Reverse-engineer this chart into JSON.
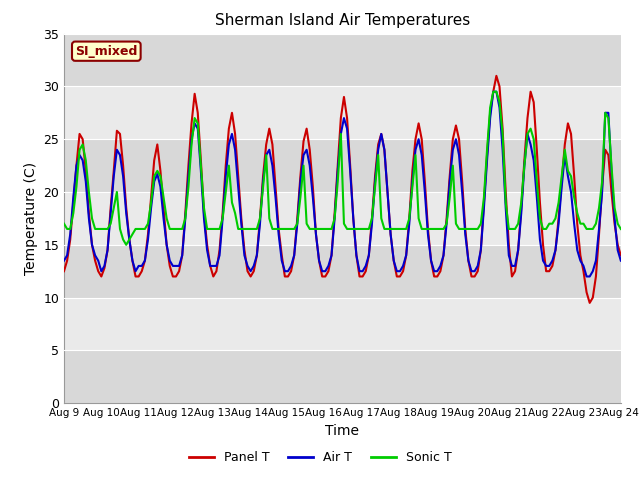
{
  "title": "Sherman Island Air Temperatures",
  "xlabel": "Time",
  "ylabel": "Temperature (C)",
  "ylim": [
    0,
    35
  ],
  "num_days": 15,
  "annotation_text": "SI_mixed",
  "annotation_color": "#8B0000",
  "annotation_bg": "#FFFFCC",
  "legend_entries": [
    "Panel T",
    "Air T",
    "Sonic T"
  ],
  "line_colors": [
    "#CC0000",
    "#0000CC",
    "#00CC00"
  ],
  "xtick_labels": [
    "Aug 9",
    "Aug 10",
    "Aug 11",
    "Aug 12",
    "Aug 13",
    "Aug 14",
    "Aug 15",
    "Aug 16",
    "Aug 17",
    "Aug 18",
    "Aug 19",
    "Aug 20",
    "Aug 21",
    "Aug 22",
    "Aug 23",
    "Aug 24"
  ],
  "bg_upper_color": "#E8E8E8",
  "bg_lower_color": "#D0D0D0",
  "panel_data": [
    12.5,
    13.5,
    15.5,
    19.0,
    22.5,
    25.5,
    25.0,
    22.0,
    18.0,
    15.0,
    13.5,
    12.5,
    12.0,
    12.8,
    14.5,
    18.5,
    22.0,
    25.8,
    25.5,
    22.5,
    18.5,
    15.5,
    13.5,
    12.0,
    12.0,
    12.5,
    13.5,
    16.0,
    19.5,
    23.0,
    24.5,
    22.0,
    18.5,
    15.0,
    13.0,
    12.0,
    12.0,
    12.5,
    14.0,
    18.0,
    22.5,
    26.5,
    29.3,
    27.5,
    23.0,
    18.0,
    15.0,
    13.0,
    12.0,
    12.5,
    14.5,
    18.0,
    22.5,
    26.0,
    27.5,
    25.5,
    21.5,
    17.5,
    14.5,
    12.5,
    12.0,
    12.5,
    14.0,
    17.5,
    21.5,
    24.5,
    26.0,
    24.5,
    20.5,
    16.5,
    14.0,
    12.0,
    12.0,
    12.5,
    14.0,
    17.5,
    21.5,
    24.8,
    26.0,
    24.0,
    20.5,
    16.0,
    13.5,
    12.0,
    12.0,
    12.5,
    14.0,
    18.0,
    22.5,
    27.0,
    29.0,
    27.0,
    22.5,
    17.5,
    14.0,
    12.0,
    12.0,
    12.5,
    14.0,
    17.5,
    21.5,
    24.5,
    25.5,
    24.0,
    20.0,
    16.0,
    13.5,
    12.0,
    12.0,
    12.5,
    14.0,
    17.5,
    22.0,
    25.0,
    26.5,
    25.0,
    21.0,
    16.5,
    13.5,
    12.0,
    12.0,
    12.5,
    14.0,
    17.5,
    21.5,
    25.0,
    26.3,
    25.0,
    21.0,
    16.5,
    13.5,
    12.0,
    12.0,
    12.5,
    14.5,
    19.0,
    23.5,
    27.5,
    29.5,
    31.0,
    30.0,
    26.0,
    20.0,
    15.0,
    12.0,
    12.5,
    14.5,
    18.5,
    23.0,
    27.0,
    29.5,
    28.5,
    24.0,
    19.0,
    15.0,
    12.5,
    12.5,
    13.0,
    14.5,
    17.5,
    21.0,
    24.5,
    26.5,
    25.5,
    21.5,
    17.0,
    14.0,
    12.5,
    10.5,
    9.5,
    10.0,
    12.0,
    16.0,
    20.5,
    24.0,
    23.5,
    20.0,
    17.0,
    15.0,
    14.0
  ],
  "air_data": [
    13.5,
    14.0,
    16.0,
    19.5,
    22.5,
    23.5,
    23.0,
    21.0,
    17.5,
    15.0,
    14.0,
    13.5,
    12.5,
    13.0,
    14.5,
    18.0,
    21.5,
    24.0,
    23.5,
    21.5,
    18.0,
    15.5,
    13.5,
    12.5,
    13.0,
    13.0,
    13.5,
    15.5,
    18.5,
    21.0,
    21.7,
    20.5,
    17.5,
    15.0,
    13.5,
    13.0,
    13.0,
    13.0,
    14.0,
    17.5,
    21.5,
    25.0,
    26.5,
    26.0,
    22.0,
    17.5,
    14.5,
    13.0,
    13.0,
    13.0,
    14.0,
    17.5,
    21.5,
    24.5,
    25.5,
    24.0,
    20.5,
    17.0,
    14.0,
    13.0,
    12.5,
    13.0,
    14.0,
    17.0,
    21.0,
    23.5,
    24.0,
    22.5,
    19.5,
    16.0,
    13.5,
    12.5,
    12.5,
    13.0,
    14.0,
    17.0,
    21.0,
    23.5,
    24.0,
    22.5,
    19.5,
    16.0,
    13.5,
    12.5,
    12.5,
    13.0,
    14.0,
    17.5,
    22.0,
    25.5,
    27.0,
    26.0,
    22.0,
    17.5,
    14.0,
    12.5,
    12.5,
    13.0,
    14.0,
    17.0,
    21.0,
    24.0,
    25.5,
    24.0,
    20.0,
    16.0,
    13.5,
    12.5,
    12.5,
    13.0,
    14.0,
    17.0,
    21.0,
    24.0,
    25.0,
    23.5,
    20.0,
    16.0,
    13.5,
    12.5,
    12.5,
    13.0,
    14.0,
    17.0,
    21.0,
    24.0,
    25.0,
    23.5,
    20.0,
    16.0,
    13.5,
    12.5,
    12.5,
    13.0,
    14.5,
    18.5,
    23.0,
    27.0,
    29.5,
    29.5,
    28.0,
    24.0,
    18.5,
    14.0,
    13.0,
    13.0,
    14.5,
    18.0,
    22.5,
    25.5,
    24.5,
    23.0,
    19.5,
    15.5,
    13.5,
    13.0,
    13.0,
    13.5,
    14.5,
    17.0,
    20.5,
    23.5,
    21.5,
    20.0,
    17.0,
    14.5,
    13.5,
    13.0,
    12.0,
    12.0,
    12.5,
    13.5,
    16.5,
    20.0,
    27.5,
    27.5,
    22.0,
    17.5,
    14.5,
    13.5
  ],
  "sonic_data": [
    17.0,
    16.5,
    16.5,
    18.0,
    20.5,
    24.0,
    24.5,
    23.0,
    20.0,
    17.5,
    16.5,
    16.5,
    16.5,
    16.5,
    16.5,
    17.0,
    18.5,
    20.0,
    16.5,
    15.5,
    15.0,
    15.5,
    16.0,
    16.5,
    16.5,
    16.5,
    16.5,
    17.0,
    19.0,
    21.5,
    22.0,
    21.5,
    19.5,
    17.5,
    16.5,
    16.5,
    16.5,
    16.5,
    16.5,
    17.5,
    20.5,
    24.5,
    27.0,
    26.5,
    22.5,
    18.5,
    16.5,
    16.5,
    16.5,
    16.5,
    16.5,
    17.5,
    20.0,
    22.5,
    19.0,
    18.0,
    16.5,
    16.5,
    16.5,
    16.5,
    16.5,
    16.5,
    16.5,
    17.5,
    20.5,
    23.5,
    17.5,
    16.5,
    16.5,
    16.5,
    16.5,
    16.5,
    16.5,
    16.5,
    16.5,
    17.0,
    19.5,
    22.5,
    17.0,
    16.5,
    16.5,
    16.5,
    16.5,
    16.5,
    16.5,
    16.5,
    16.5,
    17.5,
    21.0,
    25.5,
    17.0,
    16.5,
    16.5,
    16.5,
    16.5,
    16.5,
    16.5,
    16.5,
    16.5,
    17.5,
    20.5,
    23.5,
    17.5,
    16.5,
    16.5,
    16.5,
    16.5,
    16.5,
    16.5,
    16.5,
    16.5,
    17.5,
    20.5,
    23.5,
    17.5,
    16.5,
    16.5,
    16.5,
    16.5,
    16.5,
    16.5,
    16.5,
    16.5,
    17.0,
    19.5,
    22.5,
    17.0,
    16.5,
    16.5,
    16.5,
    16.5,
    16.5,
    16.5,
    16.5,
    17.0,
    19.5,
    24.0,
    28.0,
    29.5,
    29.5,
    28.5,
    25.5,
    19.0,
    16.5,
    16.5,
    16.5,
    17.0,
    19.0,
    22.5,
    25.5,
    26.0,
    25.0,
    21.0,
    17.5,
    16.5,
    16.5,
    17.0,
    17.0,
    17.5,
    19.0,
    21.5,
    24.0,
    22.0,
    21.5,
    19.5,
    18.0,
    17.0,
    17.0,
    16.5,
    16.5,
    16.5,
    17.0,
    18.5,
    21.0,
    27.5,
    27.0,
    22.5,
    18.5,
    17.0,
    16.5
  ]
}
